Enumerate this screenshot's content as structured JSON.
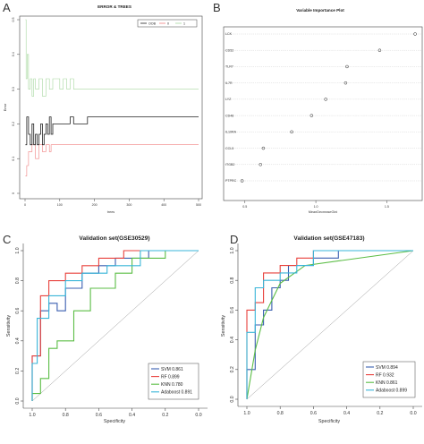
{
  "panels": {
    "A": "A",
    "B": "B",
    "C": "C",
    "D": "D"
  },
  "chart_data": [
    {
      "panel": "A",
      "type": "line",
      "title": "ERROR & TREES",
      "xlabel": "trees",
      "ylabel": "Error",
      "xlim": [
        0,
        500
      ],
      "ylim": [
        0,
        0.5
      ],
      "x_ticks": [
        "0",
        "100",
        "200",
        "300",
        "400",
        "500"
      ],
      "y_ticks": [
        "0",
        "0.1",
        "0.2",
        "0.3",
        "0.4",
        "0.5"
      ],
      "legend_position": "top-right",
      "series": [
        {
          "name": "OOB",
          "color": "#222222",
          "x": [
            1,
            5,
            10,
            15,
            20,
            25,
            30,
            35,
            40,
            45,
            50,
            55,
            60,
            65,
            70,
            75,
            80,
            90,
            100,
            110,
            120,
            130,
            140,
            150,
            160,
            170,
            180,
            200,
            240,
            300,
            400,
            500
          ],
          "y": [
            0.14,
            0.22,
            0.17,
            0.14,
            0.2,
            0.14,
            0.17,
            0.14,
            0.17,
            0.2,
            0.14,
            0.17,
            0.2,
            0.17,
            0.22,
            0.17,
            0.2,
            0.2,
            0.2,
            0.2,
            0.2,
            0.22,
            0.2,
            0.2,
            0.2,
            0.2,
            0.22,
            0.22,
            0.22,
            0.22,
            0.22,
            0.22
          ]
        },
        {
          "name": "0",
          "color": "#f08080",
          "x": [
            1,
            5,
            10,
            20,
            30,
            40,
            50,
            60,
            70,
            75,
            80,
            100,
            200,
            300,
            400,
            500
          ],
          "y": [
            0.05,
            0.08,
            0.12,
            0.14,
            0.1,
            0.14,
            0.12,
            0.14,
            0.12,
            0.14,
            0.14,
            0.14,
            0.14,
            0.14,
            0.14,
            0.14
          ]
        },
        {
          "name": "1",
          "color": "#a8d8a0",
          "x": [
            1,
            3,
            6,
            10,
            15,
            20,
            25,
            30,
            40,
            50,
            60,
            70,
            80,
            100,
            110,
            120,
            130,
            140,
            150,
            160,
            200,
            300,
            400,
            500
          ],
          "y": [
            0.5,
            0.33,
            0.4,
            0.3,
            0.33,
            0.28,
            0.33,
            0.3,
            0.33,
            0.28,
            0.33,
            0.3,
            0.33,
            0.3,
            0.33,
            0.3,
            0.33,
            0.3,
            0.3,
            0.3,
            0.3,
            0.3,
            0.3,
            0.3
          ]
        }
      ]
    },
    {
      "panel": "B",
      "type": "scatter",
      "title": "Variable Importance Plot",
      "xlabel": "MeanDecreaseGini",
      "x_ticks": [
        "0.5",
        "1.0",
        "1.5"
      ],
      "xlim": [
        0.35,
        1.75
      ],
      "categories": [
        "LCK",
        "CD52",
        "TLR7",
        "IL7R",
        "LYZ",
        "CD48",
        "IL10RA",
        "CCL5",
        "ITGB2",
        "PTPRC"
      ],
      "values": [
        1.7,
        1.45,
        1.22,
        1.21,
        1.07,
        0.97,
        0.83,
        0.63,
        0.61,
        0.48
      ]
    },
    {
      "panel": "C",
      "type": "line",
      "title": "Validation set(GSE30529)",
      "xlabel": "Specificity",
      "ylabel": "Sensitivity",
      "x_reversed": true,
      "xlim": [
        1.0,
        0.0
      ],
      "ylim": [
        0.0,
        1.0
      ],
      "x_ticks": [
        "1.0",
        "0.8",
        "0.6",
        "0.4",
        "0.2",
        "0.0"
      ],
      "y_ticks": [
        "0.0",
        "0.2",
        "0.4",
        "0.6",
        "0.8",
        "1.0"
      ],
      "legend_position": "bottom-right",
      "series": [
        {
          "name": "SVM",
          "auc": "0.861",
          "color": "#3a5fb0",
          "x": [
            1.0,
            1.0,
            0.95,
            0.95,
            0.9,
            0.9,
            0.85,
            0.85,
            0.8,
            0.8,
            0.7,
            0.7,
            0.6,
            0.6,
            0.5,
            0.5,
            0.3,
            0.3,
            0.0
          ],
          "y": [
            0.0,
            0.3,
            0.3,
            0.6,
            0.6,
            0.65,
            0.65,
            0.6,
            0.6,
            0.75,
            0.75,
            0.85,
            0.85,
            0.9,
            0.9,
            0.95,
            0.95,
            1.0,
            1.0
          ]
        },
        {
          "name": "RF",
          "auc": "0.899",
          "color": "#e8413c",
          "x": [
            1.0,
            1.0,
            0.95,
            0.95,
            0.9,
            0.9,
            0.8,
            0.8,
            0.7,
            0.7,
            0.6,
            0.6,
            0.45,
            0.45,
            0.3,
            0.3,
            0.0
          ],
          "y": [
            0.0,
            0.3,
            0.3,
            0.7,
            0.7,
            0.8,
            0.8,
            0.85,
            0.85,
            0.9,
            0.9,
            0.95,
            0.95,
            1.0,
            1.0,
            1.0,
            1.0
          ]
        },
        {
          "name": "KNN",
          "auc": "0.780",
          "color": "#5bbd45",
          "x": [
            1.0,
            1.0,
            0.95,
            0.95,
            0.9,
            0.9,
            0.85,
            0.85,
            0.75,
            0.75,
            0.65,
            0.65,
            0.5,
            0.5,
            0.4,
            0.4,
            0.2,
            0.2,
            0.0
          ],
          "y": [
            0.0,
            0.05,
            0.05,
            0.15,
            0.15,
            0.35,
            0.35,
            0.4,
            0.4,
            0.6,
            0.6,
            0.75,
            0.75,
            0.85,
            0.85,
            0.95,
            0.95,
            1.0,
            1.0
          ]
        },
        {
          "name": "Adaboost",
          "auc": "0.891",
          "color": "#39b5d8",
          "x": [
            1.0,
            1.0,
            0.97,
            0.97,
            0.9,
            0.9,
            0.8,
            0.8,
            0.7,
            0.7,
            0.55,
            0.55,
            0.35,
            0.35,
            0.0
          ],
          "y": [
            0.0,
            0.25,
            0.25,
            0.55,
            0.55,
            0.7,
            0.7,
            0.8,
            0.8,
            0.85,
            0.85,
            0.9,
            0.9,
            1.0,
            1.0
          ]
        }
      ]
    },
    {
      "panel": "D",
      "type": "line",
      "title": "Validation set(GSE47183)",
      "xlabel": "Specificity",
      "ylabel": "Sensitivity",
      "x_reversed": true,
      "xlim": [
        1.0,
        0.0
      ],
      "ylim": [
        0.0,
        1.0
      ],
      "x_ticks": [
        "1.0",
        "0.8",
        "0.6",
        "0.4",
        "0.2",
        "0.0"
      ],
      "y_ticks": [
        "0.0",
        "0.2",
        "0.4",
        "0.6",
        "0.8",
        "1.0"
      ],
      "legend_position": "bottom-right",
      "series": [
        {
          "name": "SVM",
          "auc": "0.894",
          "color": "#3a5fb0",
          "x": [
            1.0,
            1.0,
            0.95,
            0.95,
            0.9,
            0.9,
            0.85,
            0.85,
            0.8,
            0.8,
            0.75,
            0.75,
            0.6,
            0.6,
            0.45,
            0.45,
            0.0
          ],
          "y": [
            0.0,
            0.2,
            0.2,
            0.5,
            0.5,
            0.6,
            0.6,
            0.75,
            0.75,
            0.8,
            0.8,
            0.9,
            0.9,
            0.95,
            0.95,
            1.0,
            1.0
          ]
        },
        {
          "name": "RF",
          "auc": "0.932",
          "color": "#e8413c",
          "x": [
            1.0,
            1.0,
            0.95,
            0.95,
            0.9,
            0.9,
            0.8,
            0.8,
            0.7,
            0.7,
            0.6,
            0.6,
            0.0
          ],
          "y": [
            0.0,
            0.6,
            0.6,
            0.65,
            0.65,
            0.85,
            0.85,
            0.9,
            0.9,
            0.95,
            0.95,
            1.0,
            1.0
          ]
        },
        {
          "name": "KNN",
          "auc": "0.861",
          "color": "#5bbd45",
          "x": [
            1.0,
            0.95,
            0.95,
            0.9,
            0.9,
            0.8,
            0.8,
            0.65,
            0.65,
            0.0
          ],
          "y": [
            0.0,
            0.33,
            0.33,
            0.55,
            0.55,
            0.78,
            0.78,
            0.9,
            0.9,
            1.0
          ]
        },
        {
          "name": "Adaboost",
          "auc": "0.899",
          "color": "#39b5d8",
          "x": [
            1.0,
            1.0,
            0.95,
            0.95,
            0.9,
            0.9,
            0.8,
            0.8,
            0.7,
            0.7,
            0.6,
            0.6,
            0.0
          ],
          "y": [
            0.0,
            0.45,
            0.45,
            0.75,
            0.75,
            0.8,
            0.8,
            0.85,
            0.85,
            0.9,
            0.9,
            1.0,
            1.0
          ]
        }
      ]
    }
  ]
}
